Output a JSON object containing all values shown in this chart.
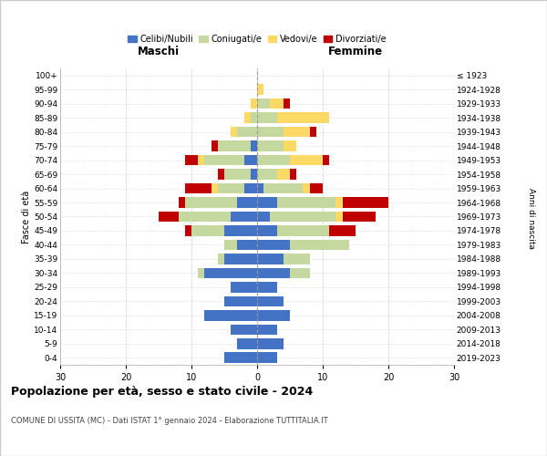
{
  "age_groups": [
    "0-4",
    "5-9",
    "10-14",
    "15-19",
    "20-24",
    "25-29",
    "30-34",
    "35-39",
    "40-44",
    "45-49",
    "50-54",
    "55-59",
    "60-64",
    "65-69",
    "70-74",
    "75-79",
    "80-84",
    "85-89",
    "90-94",
    "95-99",
    "100+"
  ],
  "birth_years": [
    "2019-2023",
    "2014-2018",
    "2009-2013",
    "2004-2008",
    "1999-2003",
    "1994-1998",
    "1989-1993",
    "1984-1988",
    "1979-1983",
    "1974-1978",
    "1969-1973",
    "1964-1968",
    "1959-1963",
    "1954-1958",
    "1949-1953",
    "1944-1948",
    "1939-1943",
    "1934-1938",
    "1929-1933",
    "1924-1928",
    "≤ 1923"
  ],
  "colors": {
    "celibe": "#4472C4",
    "coniugato": "#c5d8a0",
    "vedovo": "#ffd966",
    "divorziato": "#c00000"
  },
  "maschi": {
    "celibe": [
      5,
      3,
      4,
      8,
      5,
      4,
      8,
      5,
      3,
      5,
      4,
      3,
      2,
      1,
      2,
      1,
      0,
      0,
      0,
      0,
      0
    ],
    "coniugato": [
      0,
      0,
      0,
      0,
      0,
      0,
      1,
      1,
      2,
      5,
      8,
      8,
      4,
      4,
      6,
      5,
      3,
      1,
      0,
      0,
      0
    ],
    "vedovo": [
      0,
      0,
      0,
      0,
      0,
      0,
      0,
      0,
      0,
      0,
      0,
      0,
      1,
      0,
      1,
      0,
      1,
      1,
      1,
      0,
      0
    ],
    "divorziato": [
      0,
      0,
      0,
      0,
      0,
      0,
      0,
      0,
      0,
      1,
      3,
      1,
      4,
      1,
      2,
      1,
      0,
      0,
      0,
      0,
      0
    ]
  },
  "femmine": {
    "nubile": [
      3,
      4,
      3,
      5,
      4,
      3,
      5,
      4,
      5,
      3,
      2,
      3,
      1,
      0,
      0,
      0,
      0,
      0,
      0,
      0,
      0
    ],
    "coniugata": [
      0,
      0,
      0,
      0,
      0,
      0,
      3,
      4,
      9,
      8,
      10,
      9,
      6,
      3,
      5,
      4,
      4,
      3,
      2,
      0,
      0
    ],
    "vedova": [
      0,
      0,
      0,
      0,
      0,
      0,
      0,
      0,
      0,
      0,
      1,
      1,
      1,
      2,
      5,
      2,
      4,
      8,
      2,
      1,
      0
    ],
    "divorziata": [
      0,
      0,
      0,
      0,
      0,
      0,
      0,
      0,
      0,
      4,
      5,
      7,
      2,
      1,
      1,
      0,
      1,
      0,
      1,
      0,
      0
    ]
  },
  "xlim": 30,
  "title_main": "Popolazione per età, sesso e stato civile - 2024",
  "title_sub": "COMUNE DI USSITA (MC) - Dati ISTAT 1° gennaio 2024 - Elaborazione TUTTITALIA.IT",
  "legend_labels": [
    "Celibi/Nubili",
    "Coniugati/e",
    "Vedovi/e",
    "Divorziati/e"
  ],
  "xlabel_left": "Maschi",
  "xlabel_right": "Femmine",
  "ylabel_left": "Fasce di età",
  "ylabel_right": "Anni di nascita",
  "bg_color": "#ffffff",
  "grid_color": "#aaaaaa"
}
